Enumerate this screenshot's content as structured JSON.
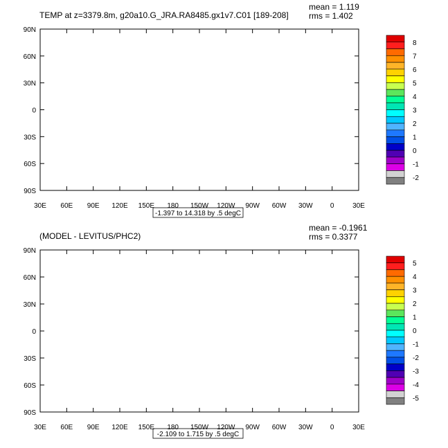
{
  "panels": [
    {
      "id": "top",
      "title": "TEMP at z=3379.8m, g20a10.G_JRA.RA8485.gx1v7.C01 [189-208]",
      "stats": [
        "mean = 1.119",
        "rms = 1.402"
      ],
      "range_label": "-1.397 to 14.318 by .5 degC",
      "x_ticks": [
        "30E",
        "60E",
        "90E",
        "120E",
        "150E",
        "180",
        "150W",
        "120W",
        "90W",
        "60W",
        "30W",
        "0",
        "30E"
      ],
      "y_ticks": [
        "90N",
        "60N",
        "30N",
        "0",
        "30S",
        "60S",
        "90S"
      ],
      "colorbar": {
        "labels": [
          "8",
          "7",
          "6",
          "5",
          "4",
          "3",
          "2",
          "1",
          "0",
          "-1",
          "-2"
        ],
        "colors": [
          "#e00000",
          "#ff1e1e",
          "#ff6a00",
          "#ff9000",
          "#ffb428",
          "#ffd200",
          "#ffff00",
          "#c8ff50",
          "#5ce65c",
          "#00ff96",
          "#00e6b4",
          "#00ffff",
          "#00c8ff",
          "#50b4ff",
          "#1e78ff",
          "#0050e6",
          "#0000c8",
          "#5000b4",
          "#a000c8",
          "#dc00e6",
          "#d2d2d2",
          "#808080"
        ]
      }
    },
    {
      "id": "bottom",
      "title": "(MODEL - LEVITUS/PHC2)",
      "stats": [
        "mean = -0.1961",
        "rms = 0.3377"
      ],
      "range_label": "-2.109 to 1.715 by .5 degC",
      "x_ticks": [
        "30E",
        "60E",
        "90E",
        "120E",
        "150E",
        "180",
        "150W",
        "120W",
        "90W",
        "60W",
        "30W",
        "0",
        "30E"
      ],
      "y_ticks": [
        "90N",
        "60N",
        "30N",
        "0",
        "30S",
        "60S",
        "90S"
      ],
      "colorbar": {
        "labels": [
          "5",
          "4",
          "3",
          "2",
          "1",
          "0",
          "-1",
          "-2",
          "-3",
          "-4",
          "-5"
        ],
        "colors": [
          "#e00000",
          "#ff1e1e",
          "#ff6a00",
          "#ff9000",
          "#ffb428",
          "#ffd200",
          "#ffff00",
          "#c8ff50",
          "#5ce65c",
          "#00ff96",
          "#00e6b4",
          "#00ffff",
          "#00c8ff",
          "#50b4ff",
          "#1e78ff",
          "#0050e6",
          "#0000c8",
          "#5000b4",
          "#a000c8",
          "#dc00e6",
          "#d2d2d2",
          "#808080"
        ]
      }
    }
  ],
  "chart_data": [
    {
      "type": "heatmap",
      "title": "TEMP at z=3379.8m, g20a10.G_JRA.RA8485.gx1v7.C01 [189-208]",
      "units": "degC",
      "contour_range": [
        -1.397,
        14.318
      ],
      "contour_interval": 0.5,
      "x_range_deg": [
        30,
        390
      ],
      "y_range_deg": [
        -90,
        90
      ],
      "mean": 1.119,
      "rms": 1.402
    },
    {
      "type": "heatmap",
      "title": "(MODEL - LEVITUS/PHC2)",
      "units": "degC",
      "contour_range": [
        -2.109,
        1.715
      ],
      "contour_interval": 0.5,
      "x_range_deg": [
        30,
        390
      ],
      "y_range_deg": [
        -90,
        90
      ],
      "mean": -0.1961,
      "rms": 0.3377
    }
  ],
  "colors": {
    "top_field": {
      "pink_arctic": "#dc00e6",
      "light_blue": "#00c8ff",
      "mid_blue": "#1e78ff",
      "cyan": "#00ffff",
      "teal": "#00e6b4",
      "purple": "#a000c8",
      "dark_blue": "#0000c8",
      "green": "#5ce65c"
    },
    "bottom_field": {
      "green_band": "#00ff96",
      "teal": "#00e6b4",
      "cyan": "#00ffff",
      "green": "#5ce65c",
      "yellow_green": "#c8ff50"
    }
  }
}
